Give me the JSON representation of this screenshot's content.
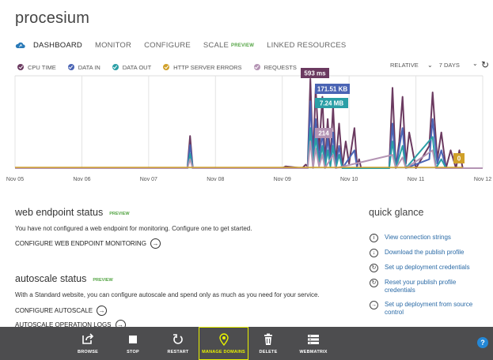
{
  "site": {
    "name": "procesium"
  },
  "tabs": [
    {
      "label": "DASHBOARD",
      "active": true
    },
    {
      "label": "MONITOR"
    },
    {
      "label": "CONFIGURE"
    },
    {
      "label": "SCALE",
      "badge": "PREVIEW"
    },
    {
      "label": "LINKED RESOURCES"
    }
  ],
  "legend": [
    {
      "label": "CPU TIME",
      "color": "#6b3a60"
    },
    {
      "label": "DATA IN",
      "color": "#4a64b4"
    },
    {
      "label": "DATA OUT",
      "color": "#2a9fa6"
    },
    {
      "label": "HTTP SERVER ERRORS",
      "color": "#d0a029"
    },
    {
      "label": "REQUESTS",
      "color": "#b494b4"
    }
  ],
  "range": {
    "mode": "RELATIVE",
    "period": "7 DAYS"
  },
  "chart_data": {
    "type": "line",
    "x_ticks": [
      "Nov 05",
      "Nov 06",
      "Nov 07",
      "Nov 08",
      "Nov 09",
      "Nov 10",
      "Nov 11",
      "Nov 12"
    ],
    "series": [
      {
        "name": "CPU TIME",
        "color": "#6b3a60",
        "points": [
          [
            0,
            0
          ],
          [
            2.58,
            0
          ],
          [
            2.62,
            0.36
          ],
          [
            2.66,
            0
          ],
          [
            4,
            0
          ],
          [
            4.05,
            0.02
          ],
          [
            4.3,
            0
          ],
          [
            4.35,
            0.04
          ],
          [
            4.38,
            0.02
          ],
          [
            4.42,
            1.0
          ],
          [
            4.46,
            0.1
          ],
          [
            4.5,
            0.9
          ],
          [
            4.55,
            0.2
          ],
          [
            4.6,
            0.8
          ],
          [
            4.64,
            0.05
          ],
          [
            4.68,
            0.55
          ],
          [
            4.72,
            0.1
          ],
          [
            4.76,
            0.7
          ],
          [
            4.8,
            0.05
          ],
          [
            4.85,
            0.5
          ],
          [
            4.9,
            0.02
          ],
          [
            4.95,
            0.3
          ],
          [
            5.0,
            0.05
          ],
          [
            5.08,
            0.45
          ],
          [
            5.12,
            0.02
          ],
          [
            5.15,
            0.1
          ],
          [
            5.18,
            0.0
          ],
          [
            5.6,
            0
          ],
          [
            5.65,
            0.9
          ],
          [
            5.7,
            0
          ],
          [
            5.75,
            0.3
          ],
          [
            5.8,
            0.8
          ],
          [
            5.85,
            0.05
          ],
          [
            5.9,
            0.4
          ],
          [
            6.0,
            0
          ],
          [
            6.2,
            0.25
          ],
          [
            6.25,
            0.85
          ],
          [
            6.32,
            0.1
          ],
          [
            6.38,
            0.4
          ],
          [
            6.45,
            0
          ],
          [
            6.52,
            0.2
          ],
          [
            6.6,
            0
          ],
          [
            6.65,
            0.2
          ],
          [
            6.7,
            0
          ],
          [
            7,
            0
          ]
        ]
      },
      {
        "name": "DATA IN",
        "color": "#4a64b4",
        "points": [
          [
            0,
            0
          ],
          [
            2.58,
            0
          ],
          [
            2.62,
            0.26
          ],
          [
            2.66,
            0
          ],
          [
            4.38,
            0
          ],
          [
            4.42,
            0.75
          ],
          [
            4.46,
            0.05
          ],
          [
            4.5,
            0.55
          ],
          [
            4.55,
            0.1
          ],
          [
            4.6,
            0.4
          ],
          [
            4.64,
            0.02
          ],
          [
            4.68,
            0.35
          ],
          [
            4.72,
            0.05
          ],
          [
            4.76,
            0.4
          ],
          [
            4.8,
            0.02
          ],
          [
            4.85,
            0.25
          ],
          [
            4.9,
            0
          ],
          [
            5.08,
            0.2
          ],
          [
            5.12,
            0
          ],
          [
            5.6,
            0
          ],
          [
            5.65,
            0.5
          ],
          [
            5.7,
            0
          ],
          [
            5.8,
            0.45
          ],
          [
            5.85,
            0
          ],
          [
            6.2,
            0.1
          ],
          [
            6.25,
            0.55
          ],
          [
            6.32,
            0.05
          ],
          [
            6.38,
            0.2
          ],
          [
            6.45,
            0
          ],
          [
            7,
            0
          ]
        ]
      },
      {
        "name": "DATA OUT",
        "color": "#2a9fa6",
        "points": [
          [
            0,
            0
          ],
          [
            2.58,
            0
          ],
          [
            2.62,
            0.16
          ],
          [
            2.66,
            0
          ],
          [
            4.38,
            0
          ],
          [
            4.42,
            0.45
          ],
          [
            4.46,
            0.02
          ],
          [
            4.5,
            0.35
          ],
          [
            4.55,
            0.05
          ],
          [
            4.6,
            0.25
          ],
          [
            4.64,
            0
          ],
          [
            4.68,
            0.2
          ],
          [
            4.72,
            0.02
          ],
          [
            4.76,
            0.25
          ],
          [
            4.8,
            0
          ],
          [
            4.85,
            0.15
          ],
          [
            4.9,
            0
          ],
          [
            5.6,
            0
          ],
          [
            5.65,
            0.3
          ],
          [
            5.7,
            0
          ],
          [
            5.8,
            0.25
          ],
          [
            5.85,
            0
          ],
          [
            6.25,
            0.35
          ],
          [
            6.3,
            0
          ],
          [
            6.38,
            0.1
          ],
          [
            6.45,
            0
          ],
          [
            7,
            0
          ]
        ]
      },
      {
        "name": "REQUESTS",
        "color": "#b494b4",
        "points": [
          [
            0,
            0
          ],
          [
            2.58,
            0
          ],
          [
            2.62,
            0.1
          ],
          [
            2.66,
            0
          ],
          [
            4.38,
            0
          ],
          [
            4.42,
            0.3
          ],
          [
            4.46,
            0
          ],
          [
            4.5,
            0.22
          ],
          [
            4.55,
            0.02
          ],
          [
            4.6,
            0.15
          ],
          [
            4.64,
            0
          ],
          [
            4.76,
            0.15
          ],
          [
            4.8,
            0
          ],
          [
            5.65,
            0.15
          ],
          [
            5.7,
            0
          ],
          [
            5.8,
            0.12
          ],
          [
            5.85,
            0
          ],
          [
            6.25,
            0.2
          ],
          [
            6.3,
            0
          ],
          [
            7,
            0
          ]
        ]
      }
    ],
    "callouts": [
      {
        "series": "CPU TIME",
        "text": "593 ms",
        "color": "#6b3a60"
      },
      {
        "series": "DATA IN",
        "text": "171.51 KB",
        "color": "#4a64b4"
      },
      {
        "series": "DATA OUT",
        "text": "7.24 MB",
        "color": "#2a9fa6"
      },
      {
        "series": "REQUESTS",
        "text": "214",
        "color": "#b494b4"
      },
      {
        "series": "HTTP SERVER ERRORS",
        "text": "0",
        "color": "#d0a029"
      }
    ]
  },
  "web_endpoint": {
    "title": "web endpoint status",
    "badge": "PREVIEW",
    "text": "You have not configured a web endpoint for monitoring. Configure one to get started.",
    "link": "CONFIGURE WEB ENDPOINT MONITORING"
  },
  "autoscale": {
    "title": "autoscale status",
    "badge": "PREVIEW",
    "text": "With a Standard website, you can configure autoscale and spend only as much as you need for your service.",
    "link": "CONFIGURE AUTOSCALE",
    "link2": "AUTOSCALE OPERATION LOGS"
  },
  "quick_glance": {
    "title": "quick glance",
    "items": [
      {
        "label": "View connection strings",
        "icon": "info-icon"
      },
      {
        "label": "Download the publish profile",
        "icon": "download-icon"
      },
      {
        "label": "Set up deployment credentials",
        "icon": "refresh-icon"
      },
      {
        "label": "Reset your publish profile credentials",
        "icon": "refresh-icon"
      },
      {
        "label": "Set up deployment from source control",
        "icon": "arrow-right-icon"
      }
    ]
  },
  "commands": [
    {
      "label": "BROWSE",
      "icon": "browse-icon"
    },
    {
      "label": "STOP",
      "icon": "stop-icon"
    },
    {
      "label": "RESTART",
      "icon": "restart-icon"
    },
    {
      "label": "MANAGE DOMAINS",
      "icon": "domain-pin-icon",
      "highlight": true
    },
    {
      "label": "DELETE",
      "icon": "trash-icon"
    },
    {
      "label": "WEBMATRIX",
      "icon": "webmatrix-icon"
    }
  ],
  "help": {
    "label": "?"
  }
}
